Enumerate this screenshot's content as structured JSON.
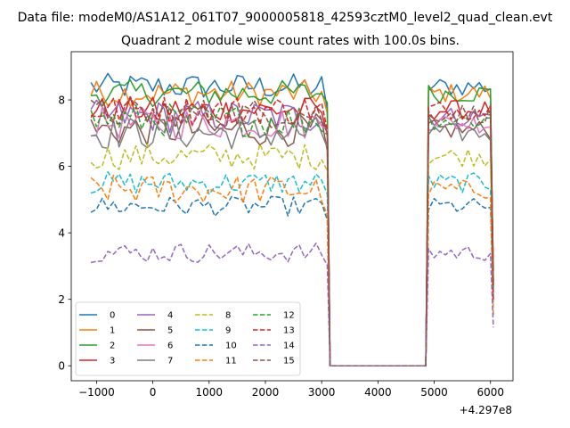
{
  "figure": {
    "suptitle": "Data file: modeM0/AS1A12_061T07_9000005818_42593cztM0_level2_quad_clean.evt",
    "title": "Quadrant 2 module wise count rates with 100.0s bins.",
    "offset_label": "+4.297e8"
  },
  "chart_data": {
    "type": "line",
    "title": "Quadrant 2 module wise count rates with 100.0s bins.",
    "xlabel": "",
    "ylabel": "",
    "x_offset": 429700000,
    "xlim": [
      -1450,
      6400
    ],
    "ylim": [
      -0.45,
      9.45
    ],
    "xticks": [
      -1000,
      0,
      1000,
      2000,
      3000,
      4000,
      5000,
      6000
    ],
    "yticks": [
      0,
      2,
      4,
      6,
      8
    ],
    "grid": false,
    "legend": {
      "placement": "lower-left",
      "columns": 4
    },
    "x_segments": [
      {
        "start": -1100,
        "end": 3000,
        "step": 100
      },
      {
        "start": 4900,
        "end": 6000,
        "step": 100
      }
    ],
    "gap": {
      "start": 3150,
      "end": 4850,
      "value": 0
    },
    "series": [
      {
        "name": "0",
        "style": "solid",
        "color": "#1f77b4",
        "level": 8.4,
        "amp": 0.4,
        "amp2": 0.3
      },
      {
        "name": "1",
        "style": "solid",
        "color": "#ff7f0e",
        "level": 8.2,
        "amp": 0.4,
        "amp2": 0.3
      },
      {
        "name": "2",
        "style": "solid",
        "color": "#2ca02c",
        "level": 8.2,
        "amp": 0.4,
        "amp2": 0.3
      },
      {
        "name": "3",
        "style": "solid",
        "color": "#d62728",
        "level": 7.7,
        "amp": 0.4,
        "amp2": 0.3
      },
      {
        "name": "4",
        "style": "solid",
        "color": "#9467bd",
        "level": 7.5,
        "amp": 0.5,
        "amp2": 0.3
      },
      {
        "name": "5",
        "style": "solid",
        "color": "#8c564b",
        "level": 7.1,
        "amp": 0.5,
        "amp2": 0.3
      },
      {
        "name": "6",
        "style": "solid",
        "color": "#e377c2",
        "level": 7.3,
        "amp": 0.5,
        "amp2": 0.3
      },
      {
        "name": "7",
        "style": "solid",
        "color": "#7f7f7f",
        "level": 7.0,
        "amp": 0.5,
        "amp2": 0.3
      },
      {
        "name": "8",
        "style": "dashed",
        "color": "#bcbd22",
        "level": 6.3,
        "amp": 0.4,
        "amp2": 0.3
      },
      {
        "name": "9",
        "style": "dashed",
        "color": "#17becf",
        "level": 5.5,
        "amp": 0.35,
        "amp2": 0.3
      },
      {
        "name": "10",
        "style": "dashed",
        "color": "#1f77b4",
        "level": 4.8,
        "amp": 0.3,
        "amp2": 0.25
      },
      {
        "name": "11",
        "style": "dashed",
        "color": "#ff7f0e",
        "level": 5.3,
        "amp": 0.45,
        "amp2": 0.3
      },
      {
        "name": "12",
        "style": "dashed",
        "color": "#2ca02c",
        "level": 7.4,
        "amp": 0.5,
        "amp2": 0.3
      },
      {
        "name": "13",
        "style": "dashed",
        "color": "#d62728",
        "level": 7.7,
        "amp": 0.45,
        "amp2": 0.3
      },
      {
        "name": "14",
        "style": "dashed",
        "color": "#9467bd",
        "level": 3.4,
        "amp": 0.3,
        "amp2": 0.25
      },
      {
        "name": "15",
        "style": "dashed",
        "color": "#8c564b",
        "level": 7.6,
        "amp": 0.45,
        "amp2": 0.3
      }
    ]
  }
}
